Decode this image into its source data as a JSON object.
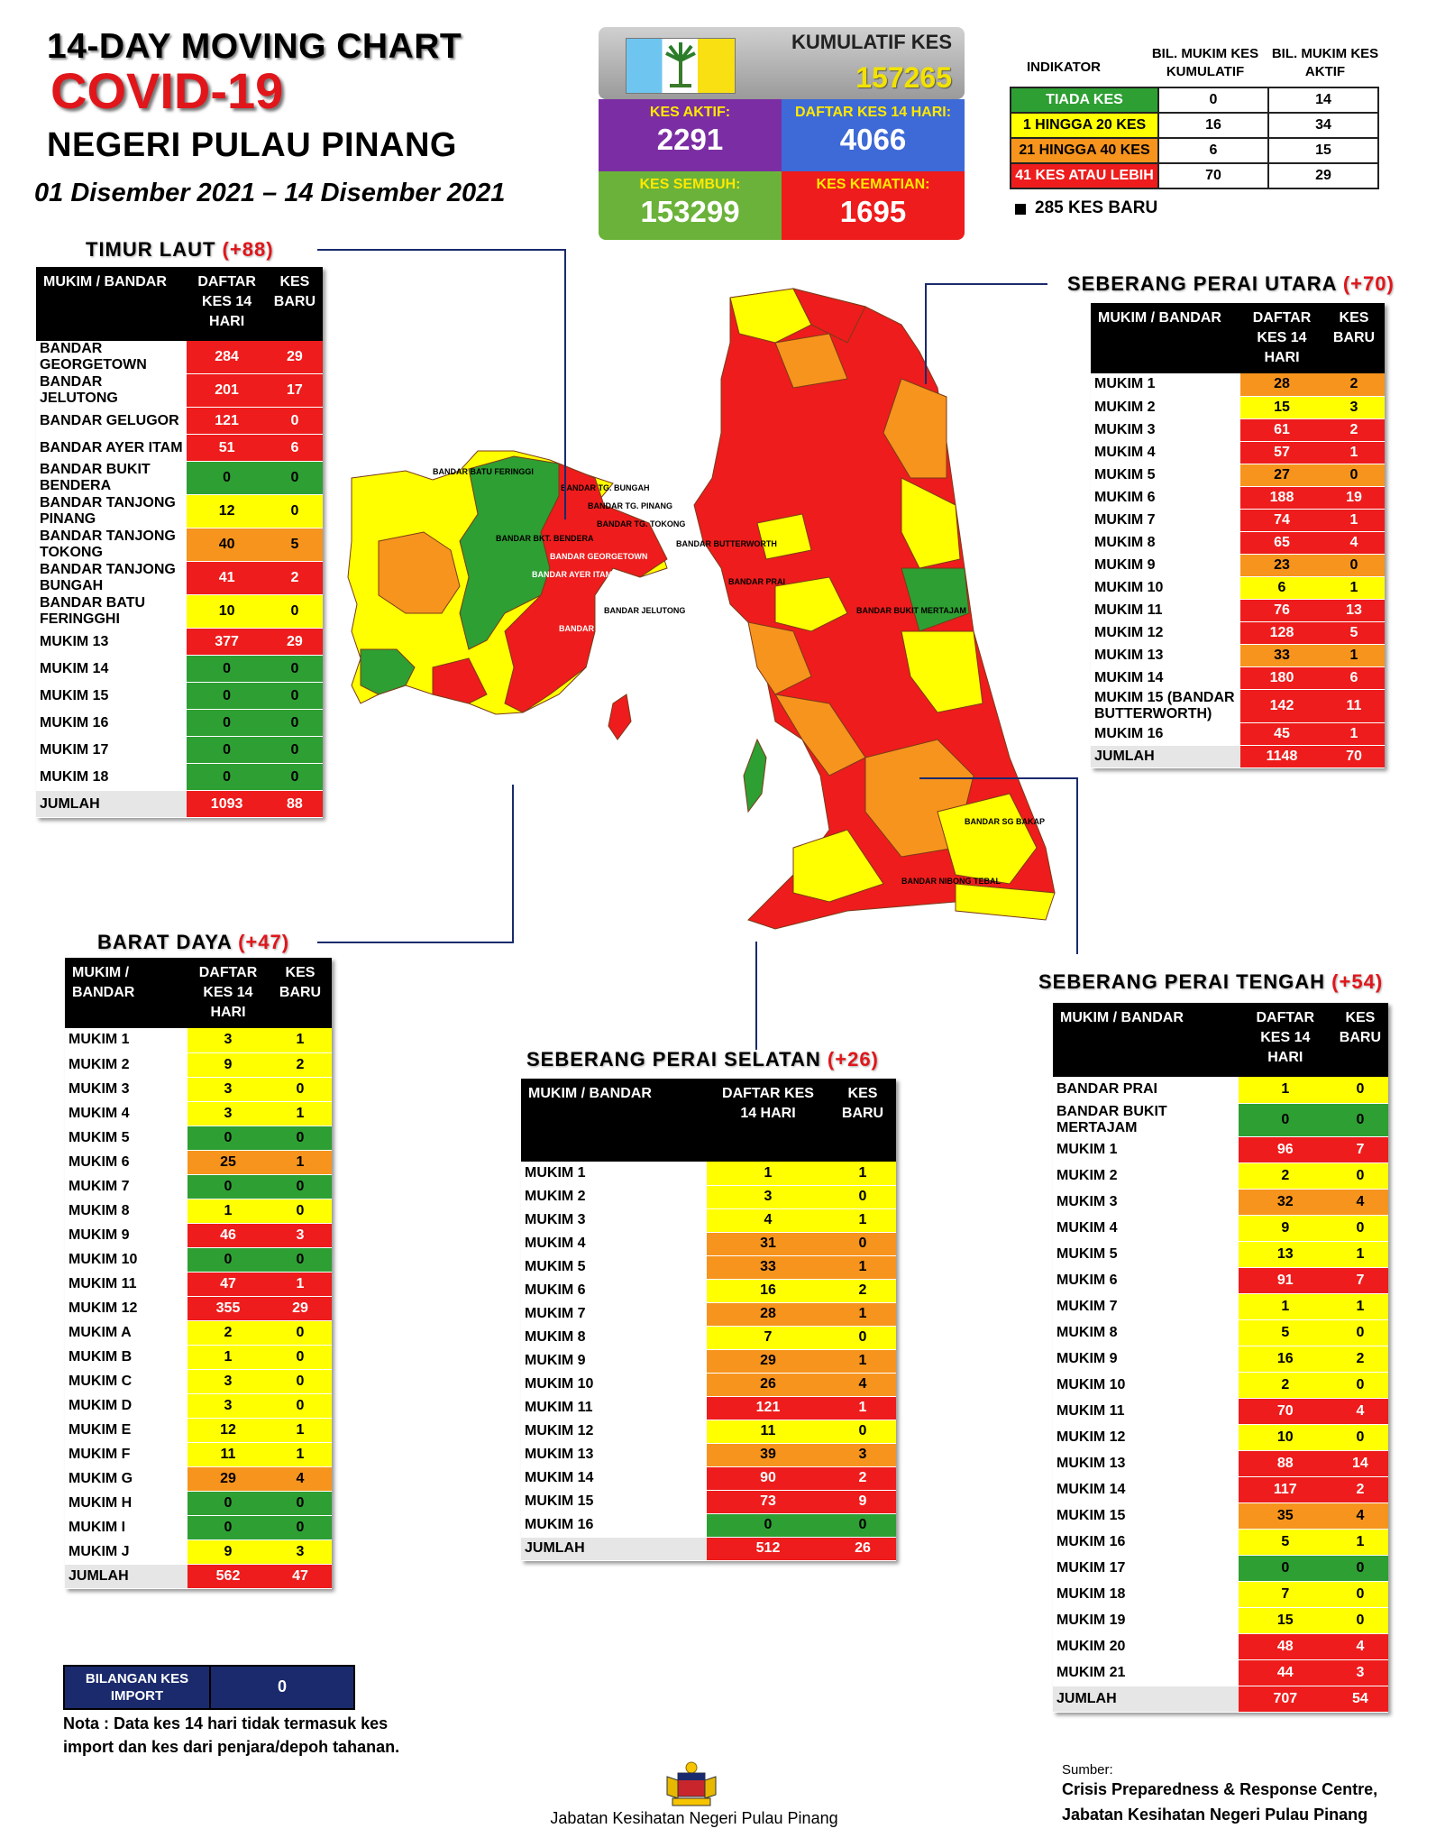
{
  "header": {
    "line1": "14-DAY MOVING CHART",
    "line2": "COVID-19",
    "line3": "NEGERI PULAU PINANG",
    "dates": "01 Disember 2021 – 14 Disember 2021"
  },
  "stats": {
    "cumulative_label": "KUMULATIF KES",
    "cumulative_value": "157265",
    "active_label": "KES AKTIF:",
    "active_value": "2291",
    "list14_label": "DAFTAR KES 14 HARI:",
    "list14_value": "4066",
    "recovered_label": "KES SEMBUH:",
    "recovered_value": "153299",
    "deaths_label": "KES KEMATIAN:",
    "deaths_value": "1695"
  },
  "indicator": {
    "col1": "INDIKATOR",
    "col2": "BIL. MUKIM KES KUMULATIF",
    "col3": "BIL. MUKIM KES AKTIF",
    "rows": [
      {
        "label": "TIADA KES",
        "a": "0",
        "b": "14"
      },
      {
        "label": "1 HINGGA 20 KES",
        "a": "16",
        "b": "34"
      },
      {
        "label": "21 HINGGA 40 KES",
        "a": "6",
        "b": "15"
      },
      {
        "label": "41 KES ATAU LEBIH",
        "a": "70",
        "b": "29"
      }
    ],
    "new_cases": "285 KES BARU"
  },
  "colors": {
    "red": "#ee1c1c",
    "yellow": "#ffff00",
    "orange": "#f7941d",
    "green": "#2e9f33",
    "navy": "#1a2a6c"
  },
  "headers": {
    "mukim": "MUKIM / BANDAR",
    "daftar": "DAFTAR KES 14 HARI",
    "baru": "KES BARU"
  },
  "timur_laut": {
    "title": "TIMUR LAUT",
    "plus": "(+88)",
    "rows": [
      {
        "name": "BANDAR GEORGETOWN",
        "a": "284",
        "b": "29",
        "ca": "r",
        "cb": "r"
      },
      {
        "name": "BANDAR JELUTONG",
        "a": "201",
        "b": "17",
        "ca": "r",
        "cb": "r"
      },
      {
        "name": "BANDAR GELUGOR",
        "a": "121",
        "b": "0",
        "ca": "r",
        "cb": "r"
      },
      {
        "name": "BANDAR AYER ITAM",
        "a": "51",
        "b": "6",
        "ca": "r",
        "cb": "r"
      },
      {
        "name": "BANDAR BUKIT BENDERA",
        "a": "0",
        "b": "0",
        "ca": "g",
        "cb": "g"
      },
      {
        "name": "BANDAR TANJONG PINANG",
        "a": "12",
        "b": "0",
        "ca": "y",
        "cb": "y"
      },
      {
        "name": "BANDAR TANJONG TOKONG",
        "a": "40",
        "b": "5",
        "ca": "o",
        "cb": "o"
      },
      {
        "name": "BANDAR TANJONG BUNGAH",
        "a": "41",
        "b": "2",
        "ca": "r",
        "cb": "r"
      },
      {
        "name": "BANDAR BATU FERINGGHI",
        "a": "10",
        "b": "0",
        "ca": "y",
        "cb": "y"
      },
      {
        "name": "MUKIM 13",
        "a": "377",
        "b": "29",
        "ca": "r",
        "cb": "r"
      },
      {
        "name": "MUKIM 14",
        "a": "0",
        "b": "0",
        "ca": "g",
        "cb": "g"
      },
      {
        "name": "MUKIM 15",
        "a": "0",
        "b": "0",
        "ca": "g",
        "cb": "g"
      },
      {
        "name": "MUKIM 16",
        "a": "0",
        "b": "0",
        "ca": "g",
        "cb": "g"
      },
      {
        "name": "MUKIM 17",
        "a": "0",
        "b": "0",
        "ca": "g",
        "cb": "g"
      },
      {
        "name": "MUKIM 18",
        "a": "0",
        "b": "0",
        "ca": "g",
        "cb": "g"
      }
    ],
    "total_label": "JUMLAH",
    "total_a": "1093",
    "total_b": "88"
  },
  "barat_daya": {
    "title": "BARAT DAYA",
    "plus": "(+47)",
    "rows": [
      {
        "name": "MUKIM 1",
        "a": "3",
        "b": "1",
        "ca": "y",
        "cb": "y"
      },
      {
        "name": "MUKIM 2",
        "a": "9",
        "b": "2",
        "ca": "y",
        "cb": "y"
      },
      {
        "name": "MUKIM 3",
        "a": "3",
        "b": "0",
        "ca": "y",
        "cb": "y"
      },
      {
        "name": "MUKIM 4",
        "a": "3",
        "b": "1",
        "ca": "y",
        "cb": "y"
      },
      {
        "name": "MUKIM 5",
        "a": "0",
        "b": "0",
        "ca": "g",
        "cb": "g"
      },
      {
        "name": "MUKIM 6",
        "a": "25",
        "b": "1",
        "ca": "o",
        "cb": "o"
      },
      {
        "name": "MUKIM 7",
        "a": "0",
        "b": "0",
        "ca": "g",
        "cb": "g"
      },
      {
        "name": "MUKIM 8",
        "a": "1",
        "b": "0",
        "ca": "y",
        "cb": "y"
      },
      {
        "name": "MUKIM 9",
        "a": "46",
        "b": "3",
        "ca": "r",
        "cb": "r"
      },
      {
        "name": "MUKIM 10",
        "a": "0",
        "b": "0",
        "ca": "g",
        "cb": "g"
      },
      {
        "name": "MUKIM 11",
        "a": "47",
        "b": "1",
        "ca": "r",
        "cb": "r"
      },
      {
        "name": "MUKIM 12",
        "a": "355",
        "b": "29",
        "ca": "r",
        "cb": "r"
      },
      {
        "name": "MUKIM A",
        "a": "2",
        "b": "0",
        "ca": "y",
        "cb": "y"
      },
      {
        "name": "MUKIM B",
        "a": "1",
        "b": "0",
        "ca": "y",
        "cb": "y"
      },
      {
        "name": "MUKIM C",
        "a": "3",
        "b": "0",
        "ca": "y",
        "cb": "y"
      },
      {
        "name": "MUKIM D",
        "a": "3",
        "b": "0",
        "ca": "y",
        "cb": "y"
      },
      {
        "name": "MUKIM E",
        "a": "12",
        "b": "1",
        "ca": "y",
        "cb": "y"
      },
      {
        "name": "MUKIM F",
        "a": "11",
        "b": "1",
        "ca": "y",
        "cb": "y"
      },
      {
        "name": "MUKIM G",
        "a": "29",
        "b": "4",
        "ca": "o",
        "cb": "o"
      },
      {
        "name": "MUKIM H",
        "a": "0",
        "b": "0",
        "ca": "g",
        "cb": "g"
      },
      {
        "name": "MUKIM I",
        "a": "0",
        "b": "0",
        "ca": "g",
        "cb": "g"
      },
      {
        "name": "MUKIM J",
        "a": "9",
        "b": "3",
        "ca": "y",
        "cb": "y"
      }
    ],
    "total_label": "JUMLAH",
    "total_a": "562",
    "total_b": "47"
  },
  "spu": {
    "title": "SEBERANG PERAI UTARA",
    "plus": "(+70)",
    "rows": [
      {
        "name": "MUKIM 1",
        "a": "28",
        "b": "2",
        "ca": "o",
        "cb": "o"
      },
      {
        "name": "MUKIM 2",
        "a": "15",
        "b": "3",
        "ca": "y",
        "cb": "y"
      },
      {
        "name": "MUKIM 3",
        "a": "61",
        "b": "2",
        "ca": "r",
        "cb": "r"
      },
      {
        "name": "MUKIM 4",
        "a": "57",
        "b": "1",
        "ca": "r",
        "cb": "r"
      },
      {
        "name": "MUKIM 5",
        "a": "27",
        "b": "0",
        "ca": "o",
        "cb": "o"
      },
      {
        "name": "MUKIM 6",
        "a": "188",
        "b": "19",
        "ca": "r",
        "cb": "r"
      },
      {
        "name": "MUKIM 7",
        "a": "74",
        "b": "1",
        "ca": "r",
        "cb": "r"
      },
      {
        "name": "MUKIM 8",
        "a": "65",
        "b": "4",
        "ca": "r",
        "cb": "r"
      },
      {
        "name": "MUKIM 9",
        "a": "23",
        "b": "0",
        "ca": "o",
        "cb": "o"
      },
      {
        "name": "MUKIM 10",
        "a": "6",
        "b": "1",
        "ca": "y",
        "cb": "y"
      },
      {
        "name": "MUKIM 11",
        "a": "76",
        "b": "13",
        "ca": "r",
        "cb": "r"
      },
      {
        "name": "MUKIM 12",
        "a": "128",
        "b": "5",
        "ca": "r",
        "cb": "r"
      },
      {
        "name": "MUKIM 13",
        "a": "33",
        "b": "1",
        "ca": "o",
        "cb": "o"
      },
      {
        "name": "MUKIM 14",
        "a": "180",
        "b": "6",
        "ca": "r",
        "cb": "r"
      },
      {
        "name": "MUKIM 15 (BANDAR BUTTERWORTH)",
        "a": "142",
        "b": "11",
        "ca": "r",
        "cb": "r"
      },
      {
        "name": "MUKIM 16",
        "a": "45",
        "b": "1",
        "ca": "r",
        "cb": "r"
      }
    ],
    "total_label": "JUMLAH",
    "total_a": "1148",
    "total_b": "70"
  },
  "sps": {
    "title": "SEBERANG PERAI SELATAN",
    "plus": "(+26)",
    "rows": [
      {
        "name": "MUKIM 1",
        "a": "1",
        "b": "1",
        "ca": "y",
        "cb": "y"
      },
      {
        "name": "MUKIM 2",
        "a": "3",
        "b": "0",
        "ca": "y",
        "cb": "y"
      },
      {
        "name": "MUKIM 3",
        "a": "4",
        "b": "1",
        "ca": "y",
        "cb": "y"
      },
      {
        "name": "MUKIM 4",
        "a": "31",
        "b": "0",
        "ca": "o",
        "cb": "o"
      },
      {
        "name": "MUKIM 5",
        "a": "33",
        "b": "1",
        "ca": "o",
        "cb": "o"
      },
      {
        "name": "MUKIM 6",
        "a": "16",
        "b": "2",
        "ca": "y",
        "cb": "y"
      },
      {
        "name": "MUKIM 7",
        "a": "28",
        "b": "1",
        "ca": "o",
        "cb": "o"
      },
      {
        "name": "MUKIM 8",
        "a": "7",
        "b": "0",
        "ca": "y",
        "cb": "y"
      },
      {
        "name": "MUKIM 9",
        "a": "29",
        "b": "1",
        "ca": "o",
        "cb": "o"
      },
      {
        "name": "MUKIM 10",
        "a": "26",
        "b": "4",
        "ca": "o",
        "cb": "o"
      },
      {
        "name": "MUKIM 11",
        "a": "121",
        "b": "1",
        "ca": "r",
        "cb": "r"
      },
      {
        "name": "MUKIM 12",
        "a": "11",
        "b": "0",
        "ca": "y",
        "cb": "y"
      },
      {
        "name": "MUKIM 13",
        "a": "39",
        "b": "3",
        "ca": "o",
        "cb": "o"
      },
      {
        "name": "MUKIM 14",
        "a": "90",
        "b": "2",
        "ca": "r",
        "cb": "r"
      },
      {
        "name": "MUKIM 15",
        "a": "73",
        "b": "9",
        "ca": "r",
        "cb": "r"
      },
      {
        "name": "MUKIM 16",
        "a": "0",
        "b": "0",
        "ca": "g",
        "cb": "g"
      }
    ],
    "total_label": "JUMLAH",
    "total_a": "512",
    "total_b": "26"
  },
  "spt": {
    "title": "SEBERANG PERAI TENGAH",
    "plus": "(+54)",
    "rows": [
      {
        "name": "BANDAR PRAI",
        "a": "1",
        "b": "0",
        "ca": "y",
        "cb": "y"
      },
      {
        "name": "BANDAR BUKIT MERTAJAM",
        "a": "0",
        "b": "0",
        "ca": "g",
        "cb": "g"
      },
      {
        "name": "MUKIM 1",
        "a": "96",
        "b": "7",
        "ca": "r",
        "cb": "r"
      },
      {
        "name": "MUKIM 2",
        "a": "2",
        "b": "0",
        "ca": "y",
        "cb": "y"
      },
      {
        "name": "MUKIM 3",
        "a": "32",
        "b": "4",
        "ca": "o",
        "cb": "o"
      },
      {
        "name": "MUKIM 4",
        "a": "9",
        "b": "0",
        "ca": "y",
        "cb": "y"
      },
      {
        "name": "MUKIM 5",
        "a": "13",
        "b": "1",
        "ca": "y",
        "cb": "y"
      },
      {
        "name": "MUKIM 6",
        "a": "91",
        "b": "7",
        "ca": "r",
        "cb": "r"
      },
      {
        "name": "MUKIM 7",
        "a": "1",
        "b": "1",
        "ca": "y",
        "cb": "y"
      },
      {
        "name": "MUKIM 8",
        "a": "5",
        "b": "0",
        "ca": "y",
        "cb": "y"
      },
      {
        "name": "MUKIM 9",
        "a": "16",
        "b": "2",
        "ca": "y",
        "cb": "y"
      },
      {
        "name": "MUKIM 10",
        "a": "2",
        "b": "0",
        "ca": "y",
        "cb": "y"
      },
      {
        "name": "MUKIM 11",
        "a": "70",
        "b": "4",
        "ca": "r",
        "cb": "r"
      },
      {
        "name": "MUKIM 12",
        "a": "10",
        "b": "0",
        "ca": "y",
        "cb": "y"
      },
      {
        "name": "MUKIM 13",
        "a": "88",
        "b": "14",
        "ca": "r",
        "cb": "r"
      },
      {
        "name": "MUKIM 14",
        "a": "117",
        "b": "2",
        "ca": "r",
        "cb": "r"
      },
      {
        "name": "MUKIM 15",
        "a": "35",
        "b": "4",
        "ca": "o",
        "cb": "o"
      },
      {
        "name": "MUKIM 16",
        "a": "5",
        "b": "1",
        "ca": "y",
        "cb": "y"
      },
      {
        "name": "MUKIM 17",
        "a": "0",
        "b": "0",
        "ca": "g",
        "cb": "g"
      },
      {
        "name": "MUKIM 18",
        "a": "7",
        "b": "0",
        "ca": "y",
        "cb": "y"
      },
      {
        "name": "MUKIM 19",
        "a": "15",
        "b": "0",
        "ca": "y",
        "cb": "y"
      },
      {
        "name": "MUKIM 20",
        "a": "48",
        "b": "4",
        "ca": "r",
        "cb": "r"
      },
      {
        "name": "MUKIM 21",
        "a": "44",
        "b": "3",
        "ca": "r",
        "cb": "r"
      }
    ],
    "total_label": "JUMLAH",
    "total_a": "707",
    "total_b": "54"
  },
  "import": {
    "label": "BILANGAN KES IMPORT",
    "value": "0",
    "note": "Nota : Data kes 14 hari tidak termasuk kes import dan kes dari penjara/depoh tahanan."
  },
  "map_labels": {
    "bbf": "BANDAR BATU FERINGGI",
    "tgbungah": "BANDAR TG. BUNGAH",
    "tgpinang": "BANDAR TG. PINANG",
    "tgtokong": "BANDAR TG. TOKONG",
    "bktbendera": "BANDAR BKT. BENDERA",
    "georgetown": "BANDAR GEORGETOWN",
    "ayeritam": "BANDAR AYER ITAM",
    "jelutong": "BANDAR JELUTONG",
    "gelugor": "BANDAR GELUGOR",
    "butterworth": "BANDAR BUTTERWORTH",
    "prai": "BANDAR PRAI",
    "bkmertajam": "BANDAR BUKIT MERTAJAM",
    "sgbakap": "BANDAR SG BAKAP",
    "nibongtebal": "BANDAR NIBONG TEBAL"
  },
  "footer": {
    "dept": "Jabatan Kesihatan Negeri Pulau Pinang",
    "source_label": "Sumber:",
    "source1": "Crisis Preparedness & Response Centre,",
    "source2": "Jabatan Kesihatan Negeri Pulau Pinang"
  }
}
